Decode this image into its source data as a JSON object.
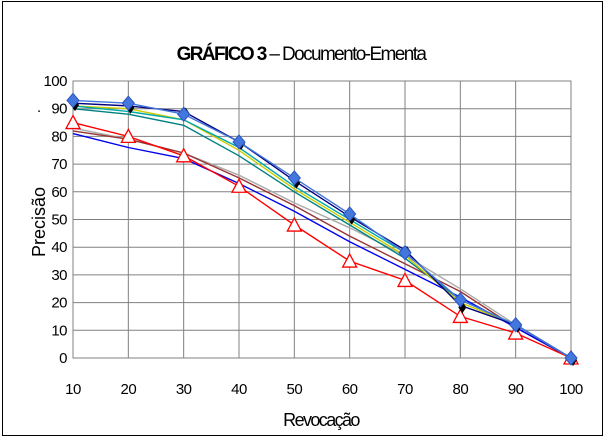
{
  "chart_data": {
    "type": "line",
    "title_bold": "GRÁFICO 3",
    "title_rest": " – Documento-Ementa",
    "xlabel": "Revocação",
    "ylabel": "Precisão",
    "xlim": [
      10,
      100
    ],
    "ylim": [
      0,
      100
    ],
    "x": [
      10,
      20,
      30,
      40,
      50,
      60,
      70,
      80,
      90,
      100
    ],
    "yticks": [
      0,
      10,
      20,
      30,
      40,
      50,
      60,
      70,
      80,
      90,
      100
    ],
    "grid": true,
    "stray_mark": ".",
    "series": [
      {
        "color": "#aaaaaa",
        "marker": "none",
        "values": [
          83,
          79,
          74,
          66,
          56,
          47,
          37,
          25,
          12,
          0
        ]
      },
      {
        "color": "#993333",
        "marker": "none",
        "values": [
          82,
          79,
          74,
          65,
          55,
          44,
          34,
          24,
          11,
          0
        ]
      },
      {
        "color": "#0000ee",
        "marker": "none",
        "values": [
          81,
          76,
          72,
          63,
          53,
          42,
          32,
          22,
          11,
          0
        ]
      },
      {
        "color": "#ff0000",
        "marker": "triangle",
        "values": [
          85,
          80,
          73,
          62,
          48,
          35,
          28,
          15,
          9,
          0
        ]
      },
      {
        "color": "#008080",
        "marker": "none",
        "values": [
          90,
          88,
          84,
          73,
          60,
          48,
          36,
          21,
          12,
          0
        ]
      },
      {
        "color": "#cccc00",
        "marker": "none",
        "values": [
          91,
          90,
          86,
          75,
          61,
          49,
          37,
          20,
          12,
          0
        ]
      },
      {
        "color": "#00aaaa",
        "marker": "none",
        "values": [
          91,
          89,
          86,
          76,
          62,
          50,
          38,
          21,
          12,
          0
        ]
      },
      {
        "color": "#000080",
        "marker": "diamond-black",
        "values": [
          92,
          91,
          89,
          78,
          64,
          51,
          39,
          19,
          12,
          0
        ]
      },
      {
        "color": "#4477dd",
        "marker": "diamond-blue",
        "values": [
          93,
          92,
          88,
          78,
          65,
          52,
          38,
          21,
          12,
          0
        ]
      }
    ]
  }
}
